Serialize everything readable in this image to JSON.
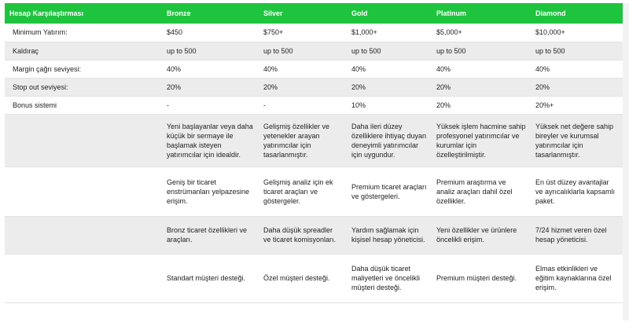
{
  "table": {
    "headers": [
      "Hesap Karşılaştırması",
      "Bronze",
      "Silver",
      "Gold",
      "Platinum",
      "Diamond"
    ],
    "rows": [
      {
        "label": "Minimum Yatırım:",
        "cells": [
          "$450",
          "$750+",
          "$1,000+",
          "$5,000+",
          "$10,000+"
        ]
      },
      {
        "label": "Kaldıraç",
        "cells": [
          "up to 500",
          "up to 500",
          "up to 500",
          "up to 500",
          "up to 500"
        ]
      },
      {
        "label": "Margin çağrı seviyesi:",
        "cells": [
          "40%",
          "40%",
          "40%",
          "40%",
          "40%"
        ]
      },
      {
        "label": "Stop out seviyesi:",
        "cells": [
          "20%",
          "20%",
          "20%",
          "20%",
          "20%"
        ]
      },
      {
        "label": "Bonus sistemi",
        "cells": [
          "-",
          "-",
          "10%",
          "20%",
          "20%+"
        ]
      }
    ],
    "features": [
      {
        "label": "",
        "cells": [
          "Yeni başlayanlar veya daha küçük bir sermaye ile başlamak isteyen yatırımcılar için idealdir.",
          "Gelişmiş özellikler ve yetenekler arayan yatırımcılar için tasarlanmıştır.",
          "Daha ileri düzey özelliklere ihtiyaç duyan deneyimli yatırımcılar için uygundur.",
          "Yüksek işlem hacmine sahip profesyonel yatırımcılar ve kurumlar için özelleştirilmiştir.",
          "Yüksek net değere sahip bireyler ve kurumsal yatırımcılar için tasarlanmıştır."
        ]
      },
      {
        "label": "",
        "cells": [
          "Geniş bir ticaret enstrümanları yelpazesine erişim.",
          "Gelişmiş analiz için ek ticaret araçları ve göstergeler.",
          "Premium ticaret araçları ve göstergeleri.",
          "Premium araştırma ve analiz araçları dahil özel özellikler.",
          "En üst düzey avantajlar ve ayrıcalıklarla kapsamlı paket."
        ]
      },
      {
        "label": "",
        "cells": [
          "Bronz ticaret özellikleri ve araçları.",
          "Daha düşük spreadler ve ticaret komisyonları.",
          "Yardım sağlamak için kişisel hesap yöneticisi.",
          "Yeni özellikler ve ürünlere öncelikli erişim.",
          "7/24 hizmet veren özel hesap yöneticisi."
        ]
      },
      {
        "label": "",
        "cells": [
          "Standart müşteri desteği.",
          "Özel müşteri desteği.",
          "Daha düşük ticaret maliyetleri ve öncelikli müşteri desteği.",
          "Premium müşteri desteği.",
          "Elmas etkinlikleri ve eğitim kaynaklarına özel erişim."
        ]
      }
    ]
  },
  "colors": {
    "header_bg": "#1ec43e",
    "header_text": "#ffffff",
    "row_alt_bg": "#ececec"
  }
}
